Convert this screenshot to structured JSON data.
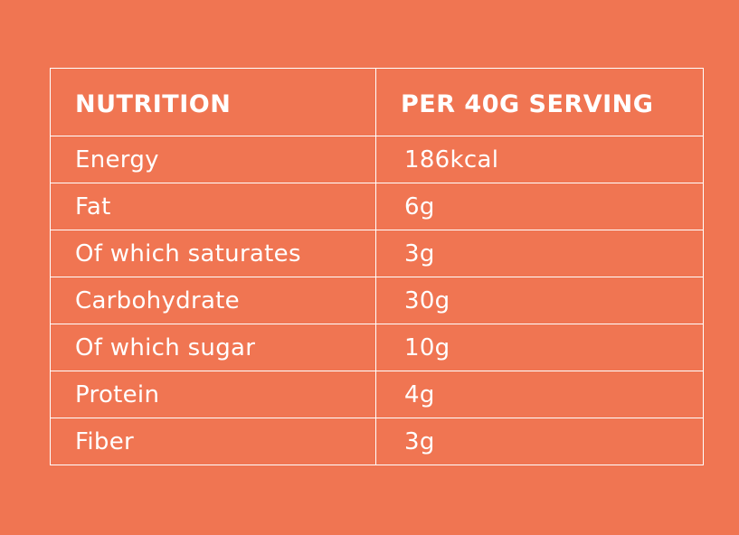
{
  "table": {
    "headers": {
      "nutrient": "NUTRITION",
      "amount": "PER 40G SERVING"
    },
    "rows": [
      {
        "nutrient": "Energy",
        "amount": "186kcal"
      },
      {
        "nutrient": "Fat",
        "amount": "6g"
      },
      {
        "nutrient": "Of which saturates",
        "amount": "3g"
      },
      {
        "nutrient": "Carbohydrate",
        "amount": "30g"
      },
      {
        "nutrient": "Of which sugar",
        "amount": "10g"
      },
      {
        "nutrient": "Protein",
        "amount": "4g"
      },
      {
        "nutrient": "Fiber",
        "amount": "3g"
      }
    ]
  },
  "colors": {
    "background": "#f07552",
    "text": "#ffffff",
    "border": "#ffffff"
  }
}
